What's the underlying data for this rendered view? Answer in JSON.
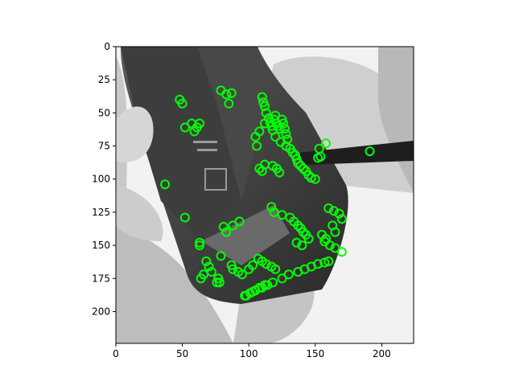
{
  "chart_data": {
    "type": "scatter",
    "title": "",
    "xlabel": "",
    "ylabel": "",
    "xlim": [
      0,
      224
    ],
    "ylim": [
      224,
      0
    ],
    "y_inverted": true,
    "grid": false,
    "xticks": [
      0,
      50,
      100,
      150,
      200
    ],
    "yticks": [
      0,
      25,
      50,
      75,
      100,
      125,
      150,
      175,
      200
    ],
    "background_image": "grayscale photo of hands opening a smartphone with a Li-ion battery, using a black plastic pry tool",
    "marker": "hollow circle",
    "marker_color": "#00ff00",
    "series": [
      {
        "x": [
          48,
          50,
          52,
          59,
          61,
          57,
          63,
          79,
          83,
          87,
          85,
          110,
          111,
          112,
          113,
          115,
          116,
          117,
          118,
          119,
          120,
          121,
          122,
          123,
          125,
          126,
          127,
          128,
          129,
          112,
          108,
          105,
          106,
          120,
          124,
          128,
          131,
          133,
          135,
          136,
          137,
          139,
          141,
          143,
          145,
          147,
          150,
          152,
          158,
          153,
          154,
          110,
          108,
          112,
          118,
          121,
          123,
          117,
          119,
          125,
          131,
          134,
          137,
          139,
          141,
          143,
          145,
          140,
          136,
          160,
          164,
          168,
          170,
          163,
          165,
          155,
          158,
          157,
          161,
          165,
          170,
          37,
          52,
          63,
          63,
          68,
          70,
          72,
          77,
          78,
          87,
          88,
          92,
          95,
          100,
          103,
          107,
          110,
          113,
          117,
          120,
          97,
          103,
          110,
          114,
          118,
          125,
          130,
          137,
          142,
          147,
          152,
          157,
          160,
          98,
          101,
          105,
          108,
          112,
          81,
          83,
          88,
          93,
          79,
          191,
          76,
          66,
          64
        ],
        "y": [
          40,
          43,
          61,
          64,
          61,
          58,
          58,
          33,
          36,
          35,
          43,
          38,
          42,
          45,
          50,
          54,
          57,
          60,
          63,
          55,
          52,
          58,
          60,
          62,
          55,
          58,
          62,
          66,
          70,
          58,
          64,
          68,
          75,
          68,
          72,
          75,
          77,
          80,
          82,
          85,
          88,
          90,
          92,
          94,
          97,
          99,
          100,
          84,
          73,
          77,
          83,
          94,
          92,
          89,
          90,
          92,
          95,
          121,
          125,
          127,
          129,
          132,
          135,
          137,
          140,
          142,
          145,
          150,
          148,
          122,
          124,
          126,
          130,
          135,
          140,
          142,
          145,
          147,
          150,
          152,
          155,
          104,
          129,
          148,
          150,
          162,
          166,
          170,
          175,
          178,
          165,
          168,
          170,
          172,
          168,
          165,
          160,
          162,
          164,
          166,
          168,
          188,
          185,
          182,
          180,
          178,
          175,
          172,
          170,
          168,
          166,
          164,
          163,
          162,
          188,
          186,
          184,
          182,
          180,
          136,
          140,
          135,
          132,
          158,
          79,
          178,
          172,
          175
        ]
      }
    ]
  }
}
